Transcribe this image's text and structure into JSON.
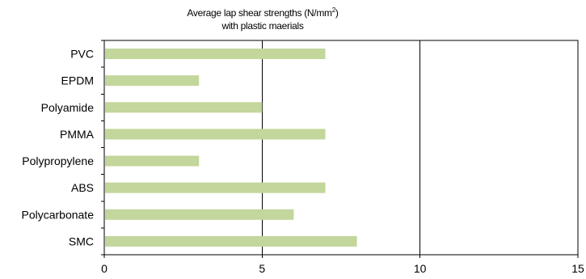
{
  "chart_data": {
    "type": "bar",
    "orientation": "horizontal",
    "title_prefix": "Average lap shear strengths (N/mm",
    "title_sup": "2",
    "title_suffix": ")",
    "subtitle": "with plastic maerials",
    "categories": [
      "PVC",
      "EPDM",
      "Polyamide",
      "PMMA",
      "Polypropylene",
      "ABS",
      "Polycarbonate",
      "SMC"
    ],
    "values": [
      7,
      3,
      5,
      7,
      3,
      7,
      6,
      8
    ],
    "xlim": [
      0,
      15
    ],
    "xticks": [
      0,
      5,
      10,
      15
    ],
    "xlabel": "",
    "ylabel": "",
    "grid": "vertical",
    "bar_color": "#c3d69b"
  }
}
